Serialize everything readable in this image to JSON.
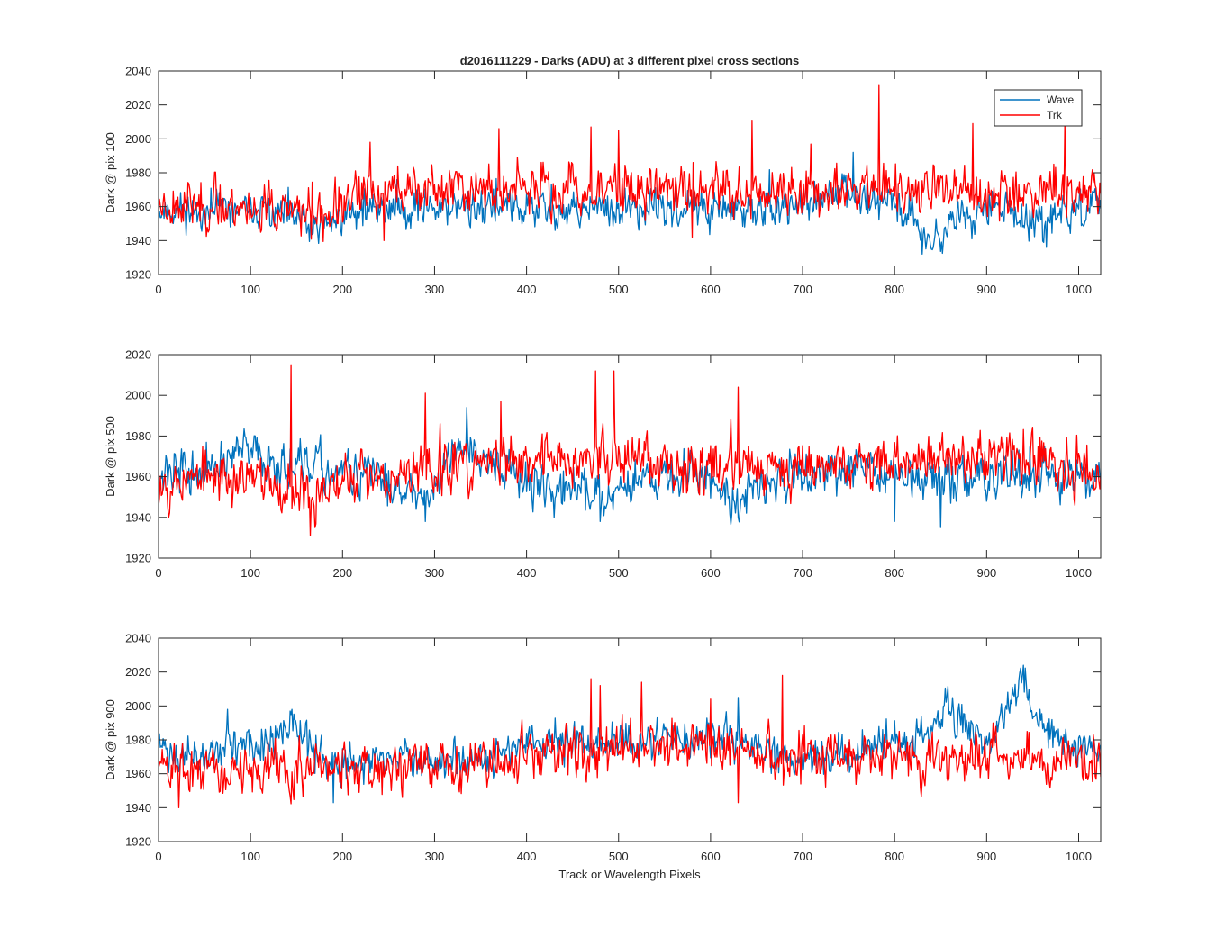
{
  "figure": {
    "title": "d2016111229 - Darks (ADU) at 3 different pixel cross sections",
    "xlabel": "Track or Wavelength Pixels"
  },
  "legend": {
    "location": "top-right of first panel",
    "entries": [
      {
        "label": "Wave",
        "color": "#0072BD"
      },
      {
        "label": "Trk",
        "color": "#FF0000"
      }
    ]
  },
  "chart_data": [
    {
      "type": "line",
      "ylabel": "Dark @ pix 100",
      "xlim": [
        0,
        1024
      ],
      "ylim": [
        1920,
        2040
      ],
      "xticks": [
        0,
        100,
        200,
        300,
        400,
        500,
        600,
        700,
        800,
        900,
        1000
      ],
      "yticks": [
        1920,
        1940,
        1960,
        1980,
        2000,
        2020,
        2040
      ],
      "series": [
        {
          "name": "Wave",
          "color": "#0072BD",
          "baseline": [
            [
              0,
              1958
            ],
            [
              60,
              1958
            ],
            [
              120,
              1957
            ],
            [
              170,
              1947
            ],
            [
              200,
              1955
            ],
            [
              250,
              1960
            ],
            [
              350,
              1960
            ],
            [
              450,
              1958
            ],
            [
              550,
              1958
            ],
            [
              650,
              1958
            ],
            [
              700,
              1960
            ],
            [
              750,
              1970
            ],
            [
              780,
              1965
            ],
            [
              820,
              1955
            ],
            [
              840,
              1938
            ],
            [
              870,
              1955
            ],
            [
              920,
              1960
            ],
            [
              960,
              1945
            ],
            [
              980,
              1955
            ],
            [
              1024,
              1962
            ]
          ],
          "noise": 7,
          "seed": 11,
          "spikes": [
            [
              755,
              1992
            ],
            [
              830,
              1932
            ],
            [
              840,
              1935
            ],
            [
              965,
              1936
            ]
          ]
        },
        {
          "name": "Trk",
          "color": "#FF0000",
          "baseline": [
            [
              0,
              1962
            ],
            [
              100,
              1960
            ],
            [
              170,
              1955
            ],
            [
              200,
              1960
            ],
            [
              230,
              1970
            ],
            [
              350,
              1970
            ],
            [
              450,
              1970
            ],
            [
              550,
              1972
            ],
            [
              650,
              1970
            ],
            [
              750,
              1970
            ],
            [
              850,
              1968
            ],
            [
              950,
              1970
            ],
            [
              1024,
              1970
            ]
          ],
          "noise": 9,
          "seed": 23,
          "spikes": [
            [
              230,
              1998
            ],
            [
              370,
              2006
            ],
            [
              470,
              2007
            ],
            [
              500,
              2005
            ],
            [
              580,
              2005
            ],
            [
              645,
              2011
            ],
            [
              783,
              2032
            ],
            [
              885,
              2009
            ],
            [
              985,
              2009
            ],
            [
              245,
              1940
            ],
            [
              580,
              1942
            ]
          ]
        }
      ]
    },
    {
      "type": "line",
      "ylabel": "Dark @ pix 500",
      "xlim": [
        0,
        1024
      ],
      "ylim": [
        1920,
        2020
      ],
      "xticks": [
        0,
        100,
        200,
        300,
        400,
        500,
        600,
        700,
        800,
        900,
        1000
      ],
      "yticks": [
        1920,
        1940,
        1960,
        1980,
        2000,
        2020
      ],
      "series": [
        {
          "name": "Wave",
          "color": "#0072BD",
          "baseline": [
            [
              0,
              1962
            ],
            [
              50,
              1962
            ],
            [
              90,
              1972
            ],
            [
              130,
              1968
            ],
            [
              180,
              1962
            ],
            [
              250,
              1958
            ],
            [
              290,
              1950
            ],
            [
              330,
              1978
            ],
            [
              360,
              1970
            ],
            [
              400,
              1955
            ],
            [
              480,
              1952
            ],
            [
              540,
              1962
            ],
            [
              600,
              1960
            ],
            [
              630,
              1948
            ],
            [
              680,
              1962
            ],
            [
              750,
              1965
            ],
            [
              850,
              1958
            ],
            [
              950,
              1960
            ],
            [
              1024,
              1962
            ]
          ],
          "noise": 7,
          "seed": 37,
          "spikes": [
            [
              335,
              1994
            ],
            [
              430,
              1940
            ],
            [
              480,
              1938
            ],
            [
              630,
              1940
            ],
            [
              800,
              1938
            ],
            [
              850,
              1935
            ],
            [
              290,
              1938
            ]
          ]
        },
        {
          "name": "Trk",
          "color": "#FF0000",
          "baseline": [
            [
              0,
              1958
            ],
            [
              100,
              1960
            ],
            [
              170,
              1952
            ],
            [
              200,
              1958
            ],
            [
              300,
              1963
            ],
            [
              400,
              1968
            ],
            [
              500,
              1970
            ],
            [
              600,
              1965
            ],
            [
              700,
              1965
            ],
            [
              800,
              1968
            ],
            [
              900,
              1968
            ],
            [
              1024,
              1966
            ]
          ],
          "noise": 8,
          "seed": 53,
          "spikes": [
            [
              144,
              2015
            ],
            [
              290,
              2001
            ],
            [
              372,
              1997
            ],
            [
              475,
              2012
            ],
            [
              495,
              2012
            ],
            [
              630,
              2004
            ],
            [
              165,
              1931
            ],
            [
              170,
              1935
            ]
          ]
        }
      ]
    },
    {
      "type": "line",
      "ylabel": "Dark @ pix 900",
      "xlim": [
        0,
        1024
      ],
      "ylim": [
        1920,
        2040
      ],
      "xticks": [
        0,
        100,
        200,
        300,
        400,
        500,
        600,
        700,
        800,
        900,
        1000
      ],
      "yticks": [
        1920,
        1940,
        1960,
        1980,
        2000,
        2020,
        2040
      ],
      "series": [
        {
          "name": "Wave",
          "color": "#0072BD",
          "baseline": [
            [
              0,
              1975
            ],
            [
              40,
              1968
            ],
            [
              80,
              1978
            ],
            [
              120,
              1975
            ],
            [
              145,
              1990
            ],
            [
              170,
              1972
            ],
            [
              200,
              1965
            ],
            [
              300,
              1970
            ],
            [
              400,
              1975
            ],
            [
              450,
              1978
            ],
            [
              520,
              1978
            ],
            [
              620,
              1982
            ],
            [
              640,
              1978
            ],
            [
              680,
              1968
            ],
            [
              750,
              1972
            ],
            [
              820,
              1980
            ],
            [
              860,
              1998
            ],
            [
              880,
              1990
            ],
            [
              900,
              1975
            ],
            [
              935,
              2016
            ],
            [
              960,
              1990
            ],
            [
              1000,
              1975
            ],
            [
              1024,
              1975
            ]
          ],
          "noise": 7,
          "seed": 71,
          "spikes": [
            [
              940,
              2024
            ],
            [
              630,
              2005
            ],
            [
              145,
              1998
            ],
            [
              75,
              1998
            ],
            [
              190,
              1943
            ]
          ]
        },
        {
          "name": "Trk",
          "color": "#FF0000",
          "baseline": [
            [
              0,
              1965
            ],
            [
              100,
              1962
            ],
            [
              200,
              1962
            ],
            [
              300,
              1965
            ],
            [
              400,
              1968
            ],
            [
              500,
              1975
            ],
            [
              600,
              1975
            ],
            [
              700,
              1970
            ],
            [
              800,
              1970
            ],
            [
              900,
              1970
            ],
            [
              1024,
              1968
            ]
          ],
          "noise": 9,
          "seed": 89,
          "spikes": [
            [
              470,
              2016
            ],
            [
              480,
              2012
            ],
            [
              525,
              2014
            ],
            [
              678,
              2018
            ],
            [
              600,
              2004
            ],
            [
              22,
              1940
            ],
            [
              630,
              1943
            ]
          ]
        }
      ]
    }
  ]
}
